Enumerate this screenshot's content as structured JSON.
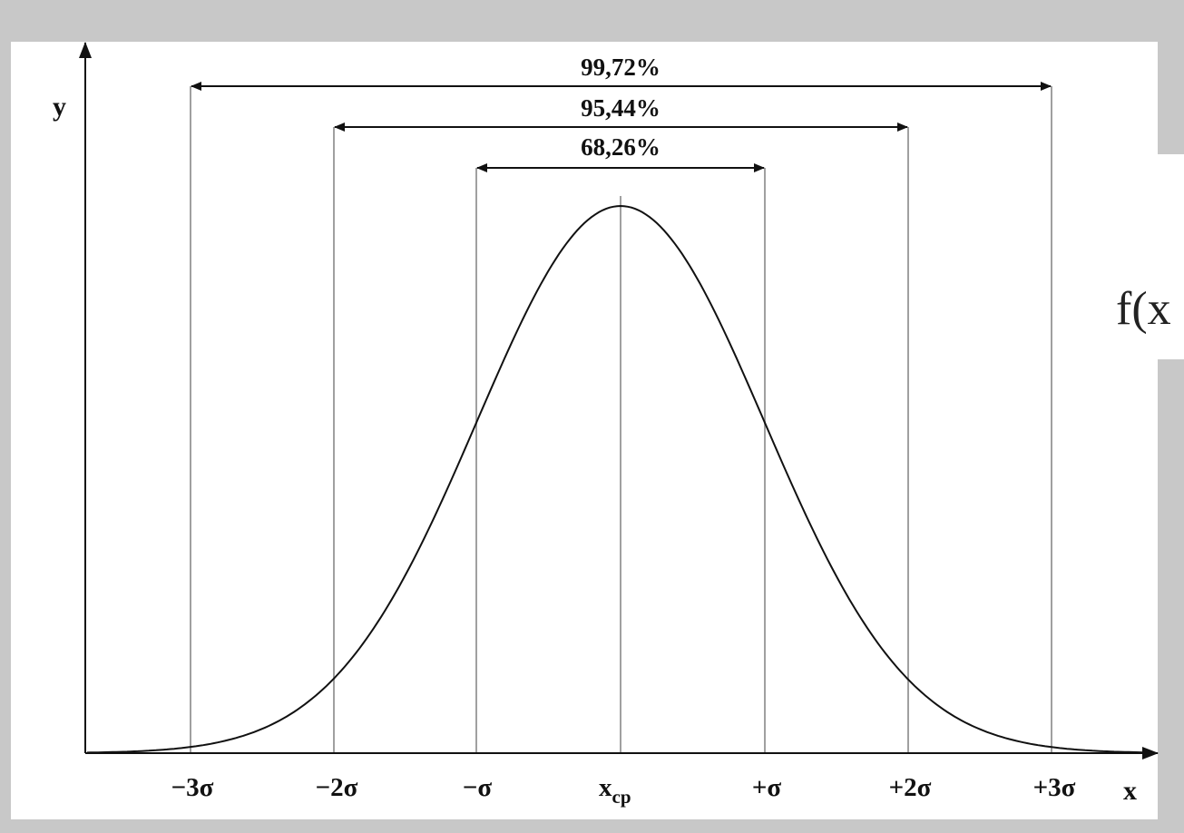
{
  "diagram": {
    "type": "normal-distribution",
    "y_axis_label": "y",
    "x_axis_label": "x",
    "tick_labels": [
      "−3σ",
      "−2σ",
      "−σ",
      "x",
      "+σ",
      "+2σ",
      "+3σ"
    ],
    "center_tick": {
      "base": "x",
      "subscript": "cp"
    },
    "intervals": [
      {
        "label": "99,72%",
        "from_sigma": -3,
        "to_sigma": 3
      },
      {
        "label": "95,44%",
        "from_sigma": -2,
        "to_sigma": 2
      },
      {
        "label": "68,26%",
        "from_sigma": -1,
        "to_sigma": 1
      }
    ],
    "side_formula_fragment": "f(x",
    "colors": {
      "background_frame": "#c8c8c8",
      "plot_area": "#ffffff",
      "curve": "#111111",
      "guide_lines": "#a0a0a0",
      "side_panel": "#ffffff"
    }
  }
}
